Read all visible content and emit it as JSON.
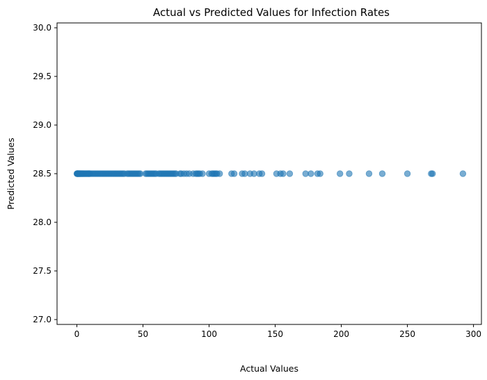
{
  "chart_data": {
    "type": "scatter",
    "title": "Actual vs Predicted Values for Infection Rates",
    "xlabel": "Actual Values",
    "ylabel": "Predicted Values",
    "xlim": [
      -15,
      306
    ],
    "ylim": [
      26.95,
      30.05
    ],
    "xticks": [
      0,
      50,
      100,
      150,
      200,
      250,
      300
    ],
    "yticks": [
      27.0,
      27.5,
      28.0,
      28.5,
      29.0,
      29.5,
      30.0
    ],
    "grid": false,
    "point_color": "#1f77b4",
    "point_alpha": 0.6,
    "series": [
      {
        "x": [
          0,
          0.2,
          0.4,
          0.6,
          0.8,
          1,
          1.2,
          1.5,
          1.8,
          2,
          2.3,
          2.6,
          3,
          3.4,
          3.8,
          4.2,
          4.6,
          5,
          5.5,
          6,
          6.5,
          7,
          7.5,
          8,
          8.5,
          9,
          9.5,
          10,
          11,
          12,
          13,
          14,
          15,
          16,
          17,
          18,
          19,
          20,
          21,
          22,
          23,
          24,
          25,
          26,
          27,
          28,
          29,
          30,
          31,
          32,
          33,
          34,
          35,
          36,
          38,
          39,
          40,
          41,
          42,
          43,
          44,
          45,
          46,
          47,
          48,
          52,
          53,
          54,
          55,
          56,
          57,
          58,
          59,
          60,
          62,
          63,
          64,
          65,
          66,
          67,
          68,
          69,
          70,
          71,
          72,
          73,
          74,
          75,
          78,
          79,
          81,
          83,
          85,
          88,
          90,
          91,
          92,
          93,
          95,
          100,
          102,
          103,
          104,
          105,
          106,
          108,
          117,
          119,
          125,
          127,
          131,
          134,
          138,
          140,
          151,
          154,
          156,
          161,
          173,
          177,
          182,
          184,
          199,
          206,
          221,
          231,
          250,
          268,
          269,
          292
        ],
        "y": [
          28.5,
          28.5,
          28.5,
          28.5,
          28.5,
          28.5,
          28.5,
          28.5,
          28.5,
          28.5,
          28.5,
          28.5,
          28.5,
          28.5,
          28.5,
          28.5,
          28.5,
          28.5,
          28.5,
          28.5,
          28.5,
          28.5,
          28.5,
          28.5,
          28.5,
          28.5,
          28.5,
          28.5,
          28.5,
          28.5,
          28.5,
          28.5,
          28.5,
          28.5,
          28.5,
          28.5,
          28.5,
          28.5,
          28.5,
          28.5,
          28.5,
          28.5,
          28.5,
          28.5,
          28.5,
          28.5,
          28.5,
          28.5,
          28.5,
          28.5,
          28.5,
          28.5,
          28.5,
          28.5,
          28.5,
          28.5,
          28.5,
          28.5,
          28.5,
          28.5,
          28.5,
          28.5,
          28.5,
          28.5,
          28.5,
          28.5,
          28.5,
          28.5,
          28.5,
          28.5,
          28.5,
          28.5,
          28.5,
          28.5,
          28.5,
          28.5,
          28.5,
          28.5,
          28.5,
          28.5,
          28.5,
          28.5,
          28.5,
          28.5,
          28.5,
          28.5,
          28.5,
          28.5,
          28.5,
          28.5,
          28.5,
          28.5,
          28.5,
          28.5,
          28.5,
          28.5,
          28.5,
          28.5,
          28.5,
          28.5,
          28.5,
          28.5,
          28.5,
          28.5,
          28.5,
          28.5,
          28.5,
          28.5,
          28.5,
          28.5,
          28.5,
          28.5,
          28.5,
          28.5,
          28.5,
          28.5,
          28.5,
          28.5,
          28.5,
          28.5,
          28.5,
          28.5,
          28.5,
          28.5,
          28.5,
          28.5,
          28.5,
          28.5,
          28.5,
          28.5
        ]
      }
    ]
  }
}
